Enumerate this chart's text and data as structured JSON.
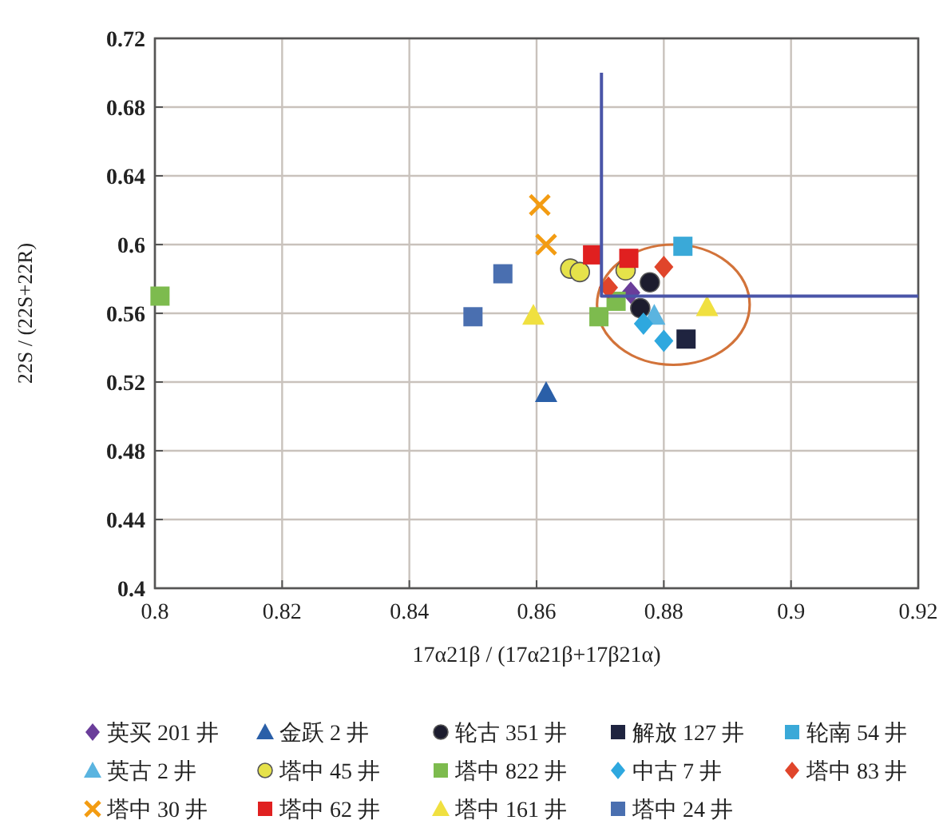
{
  "chart_data": {
    "type": "scatter",
    "xlabel": "17α21β / (17α21β+17β21α)",
    "ylabel": "22S / (22S+22R)",
    "xlim": [
      0.8,
      0.92
    ],
    "xticks": [
      0.8,
      0.82,
      0.84,
      0.86,
      0.88,
      0.9,
      0.92
    ],
    "ylim": [
      0.4,
      0.72
    ],
    "yticks": [
      0.4,
      0.44,
      0.48,
      0.52,
      0.56,
      0.6,
      0.64,
      0.68,
      0.72
    ],
    "grid": true,
    "legend": "bottom",
    "series": [
      {
        "name": "英买 201 井",
        "color": "#6a3d9a",
        "marker": "diamond",
        "x": [
          0.8748
        ],
        "values": [
          0.572
        ]
      },
      {
        "name": "金跃 2 井",
        "color": "#2a5fa8",
        "marker": "triangle",
        "x": [
          0.8615
        ],
        "values": [
          0.514
        ]
      },
      {
        "name": "轮古 351 井",
        "color": "#1c1c2e",
        "marker": "circle",
        "x": [
          0.8778,
          0.8763
        ],
        "values": [
          0.578,
          0.563
        ]
      },
      {
        "name": "解放 127 井",
        "color": "#1f2440",
        "marker": "square",
        "x": [
          0.8835
        ],
        "values": [
          0.545
        ]
      },
      {
        "name": "轮南 54 井",
        "color": "#3aa9d8",
        "marker": "square",
        "x": [
          0.883
        ],
        "values": [
          0.599
        ]
      },
      {
        "name": "英古 2 井",
        "color": "#5ab4e0",
        "marker": "triangle",
        "x": [
          0.8785
        ],
        "values": [
          0.559
        ]
      },
      {
        "name": "塔中 45 井",
        "color": "#e6e24a",
        "marker": "circle",
        "x": [
          0.8653,
          0.8668,
          0.874
        ],
        "values": [
          0.586,
          0.584,
          0.585
        ]
      },
      {
        "name": "塔中 822 井",
        "color": "#7dbb4e",
        "marker": "square",
        "x": [
          0.8008,
          0.8698,
          0.8725
        ],
        "values": [
          0.57,
          0.558,
          0.567
        ]
      },
      {
        "name": "中古 7 井",
        "color": "#2ea8df",
        "marker": "diamond",
        "x": [
          0.8768,
          0.88
        ],
        "values": [
          0.554,
          0.544
        ]
      },
      {
        "name": "塔中 83 井",
        "color": "#e0452b",
        "marker": "diamond",
        "x": [
          0.8713,
          0.88
        ],
        "values": [
          0.575,
          0.587
        ]
      },
      {
        "name": "塔中 30 井",
        "color": "#f39c12",
        "marker": "cross",
        "x": [
          0.8605,
          0.8615
        ],
        "values": [
          0.623,
          0.6
        ]
      },
      {
        "name": "塔中 62 井",
        "color": "#e02020",
        "marker": "square",
        "x": [
          0.8688,
          0.8745
        ],
        "values": [
          0.594,
          0.592
        ]
      },
      {
        "name": "塔中 161 井",
        "color": "#f0e040",
        "marker": "triangle",
        "x": [
          0.8595,
          0.8868
        ],
        "values": [
          0.559,
          0.564
        ]
      },
      {
        "name": "塔中 24 井",
        "color": "#4a6fb0",
        "marker": "square",
        "x": [
          0.8547,
          0.85
        ],
        "values": [
          0.583,
          0.558
        ]
      },
      {
        "type": "line",
        "color": "#4a55a8",
        "marker": "none",
        "x": [
          0.8702,
          0.8702,
          0.92
        ],
        "values": [
          0.7,
          0.57,
          0.57
        ]
      }
    ]
  }
}
